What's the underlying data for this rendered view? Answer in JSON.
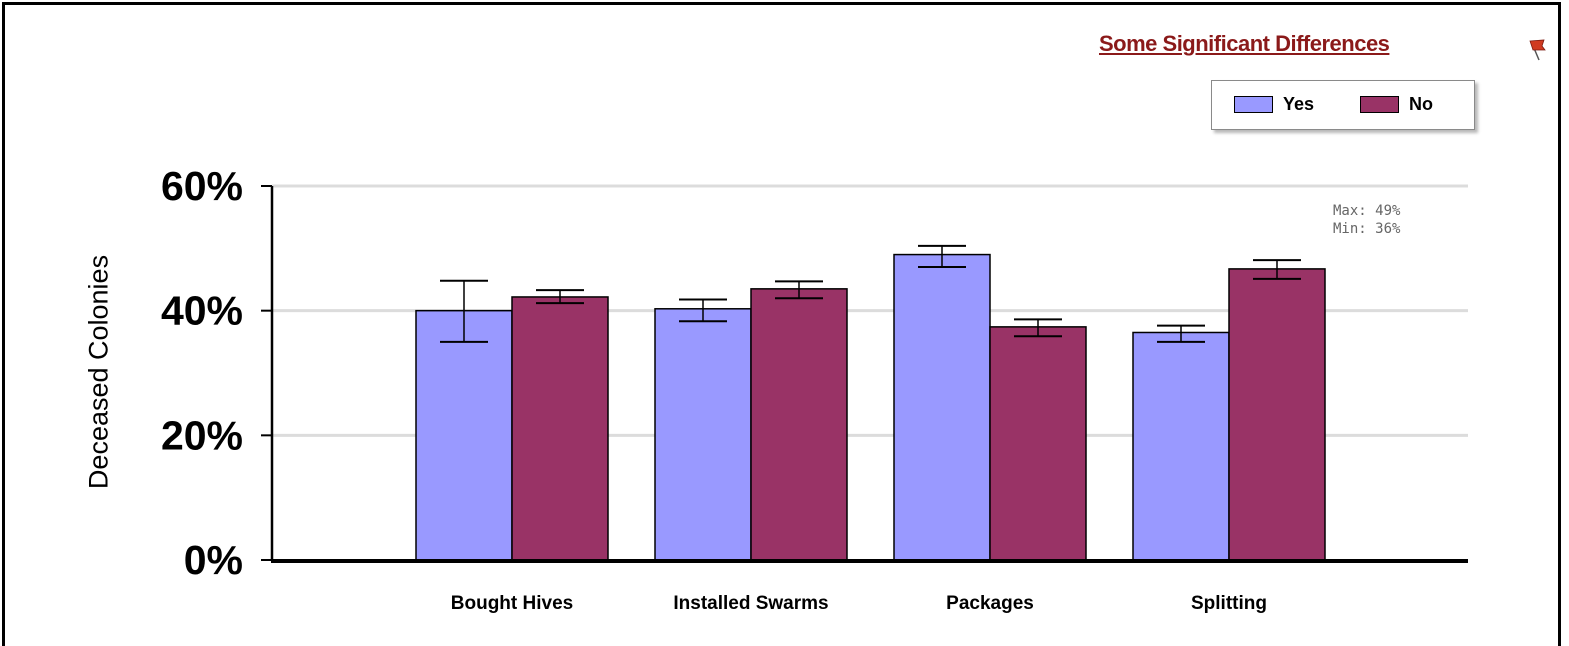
{
  "header": {
    "significance_link": "Some Significant Differences",
    "flag_icon": "flag-icon"
  },
  "legend": {
    "items": [
      {
        "label": "Yes",
        "color": "#9999ff"
      },
      {
        "label": "No",
        "color": "#993366"
      }
    ]
  },
  "annotation": {
    "max_label": "Max: 49%",
    "min_label": "Min: 36%"
  },
  "chart_data": {
    "type": "bar",
    "ylabel": "Deceased Colonies",
    "xlabel": "",
    "ylim": [
      0,
      60
    ],
    "yticks": [
      0,
      20,
      40,
      60
    ],
    "ytick_labels": [
      "0%",
      "20%",
      "40%",
      "60%"
    ],
    "grid": true,
    "legend_position": "top-right",
    "categories": [
      "Bought Hives",
      "Installed Swarms",
      "Packages",
      "Splitting"
    ],
    "series": [
      {
        "name": "Yes",
        "color": "#9999ff",
        "values": [
          40,
          40.3,
          49,
          36.5
        ],
        "error_high": [
          44.8,
          41.8,
          50.4,
          37.6
        ],
        "error_low": [
          35,
          38.3,
          47,
          35
        ]
      },
      {
        "name": "No",
        "color": "#993366",
        "values": [
          42.2,
          43.5,
          37.4,
          46.7
        ],
        "error_high": [
          43.3,
          44.7,
          38.6,
          48.1
        ],
        "error_low": [
          41.2,
          42,
          35.9,
          45.1
        ]
      }
    ]
  }
}
